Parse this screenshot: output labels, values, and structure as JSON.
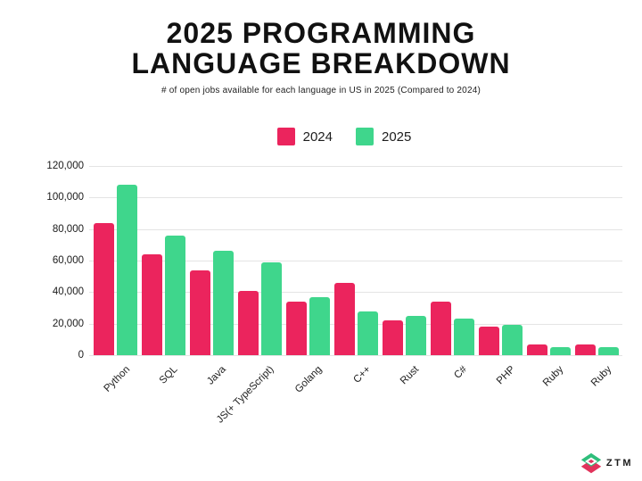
{
  "title": "2025 PROGRAMMING LANGUAGE BREAKDOWN",
  "subtitle": "# of open jobs available for each language in US in 2025 (Compared to 2024)",
  "logo": {
    "text": "ZTM"
  },
  "colors": {
    "pink_2024": "#EB245D",
    "green_2025": "#3FD68C"
  },
  "chart_data": {
    "type": "bar",
    "title": "2025 PROGRAMMING LANGUAGE BREAKDOWN",
    "subtitle": "# of open jobs available for each language in US in 2025 (Compared to 2024)",
    "categories": [
      "Python",
      "SQL",
      "Java",
      "JS(+ TypeScript)",
      "Golang",
      "C++",
      "Rust",
      "C#",
      "PHP",
      "Ruby",
      "Ruby"
    ],
    "series": [
      {
        "name": "2024",
        "color": "#EB245D",
        "values": [
          84000,
          64000,
          54000,
          41000,
          34000,
          46000,
          22000,
          34000,
          18000,
          7000,
          7000
        ]
      },
      {
        "name": "2025",
        "color": "#3FD68C",
        "values": [
          108000,
          76000,
          66000,
          59000,
          37000,
          28000,
          25000,
          23000,
          19000,
          5000,
          5000
        ]
      }
    ],
    "xlabel": "",
    "ylabel": "",
    "ylim": [
      0,
      120000
    ],
    "y_ticks": [
      "120,000",
      "100,000",
      "80,000",
      "60,000",
      "40,000",
      "20,000",
      "0"
    ],
    "grid": true,
    "legend_position": "top-center",
    "x_tick_rotation": -45
  }
}
